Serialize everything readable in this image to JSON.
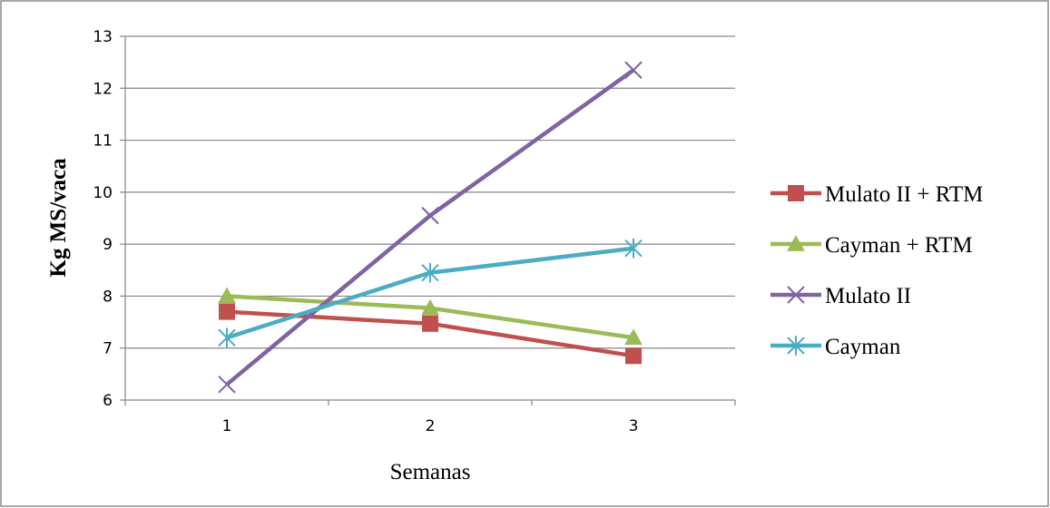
{
  "chart_data": {
    "type": "line",
    "title": "",
    "xlabel": "Semanas",
    "ylabel": "Kg MS/vaca",
    "categories": [
      "1",
      "2",
      "3"
    ],
    "ylim": [
      6,
      13
    ],
    "yticks": [
      "6",
      "7",
      "8",
      "9",
      "10",
      "11",
      "12",
      "13"
    ],
    "grid": true,
    "legend_position": "right",
    "series": [
      {
        "name": "Mulato II + RTM",
        "values": [
          7.7,
          7.47,
          6.85
        ],
        "color": "#C0504D",
        "marker": "square"
      },
      {
        "name": "Cayman + RTM",
        "values": [
          8.0,
          7.77,
          7.2
        ],
        "color": "#9BBB59",
        "marker": "triangle"
      },
      {
        "name": "Mulato II",
        "values": [
          6.3,
          9.55,
          12.35
        ],
        "color": "#8064A2",
        "marker": "x"
      },
      {
        "name": "Cayman",
        "values": [
          7.2,
          8.45,
          8.92
        ],
        "color": "#4BACC6",
        "marker": "star"
      }
    ]
  }
}
